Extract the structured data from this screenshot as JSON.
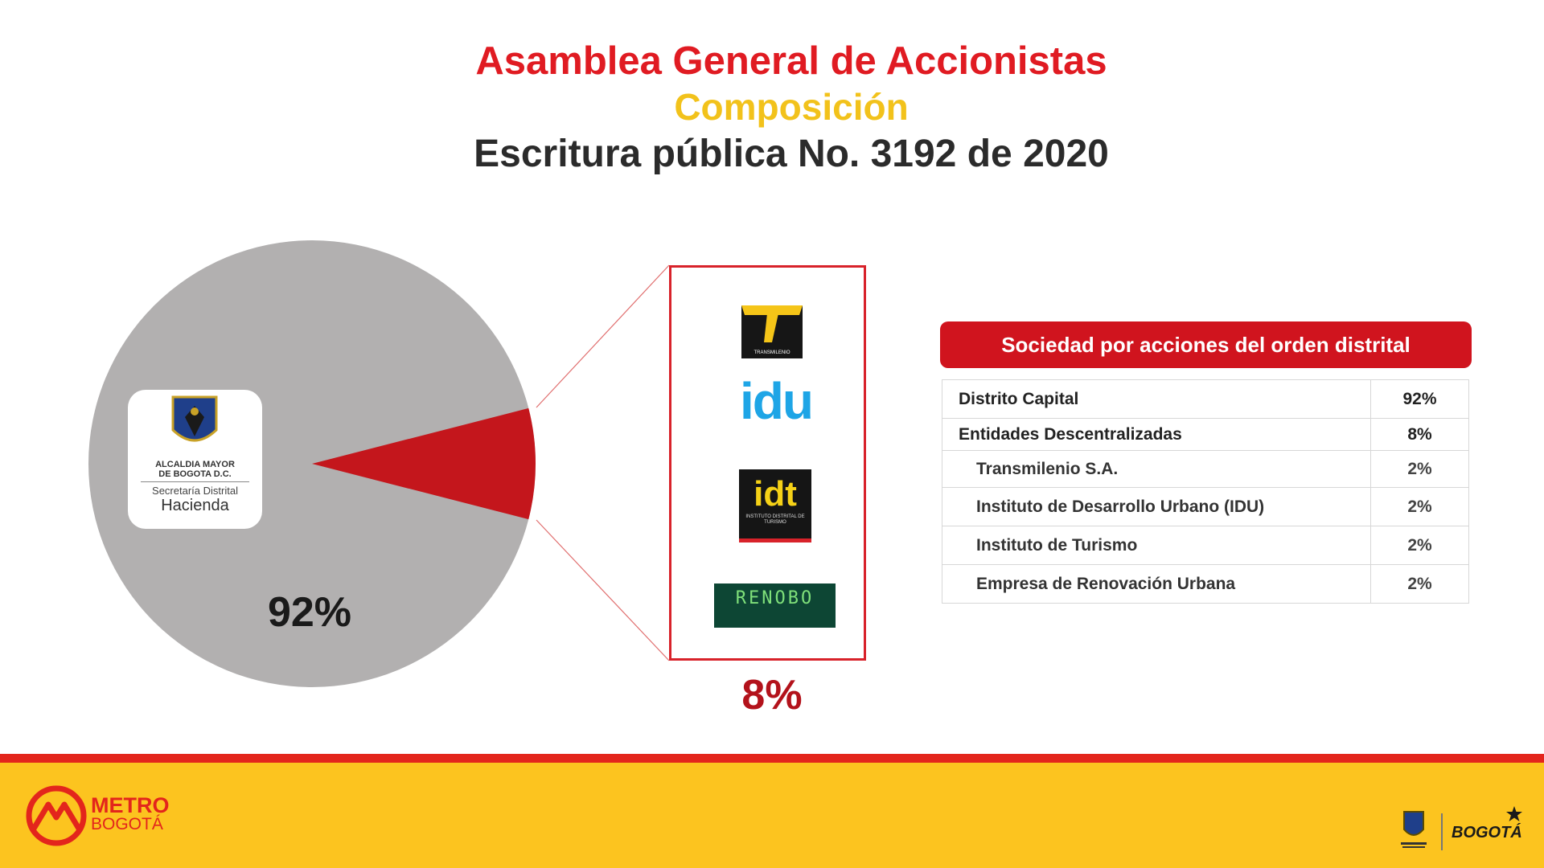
{
  "header": {
    "title": "Asamblea General de Accionistas",
    "subtitle": "Composición",
    "subheading": "Escritura pública No. 3192 de 2020"
  },
  "pie": {
    "main_logo": {
      "line1": "ALCALDIA MAYOR",
      "line2": "DE BOGOTA D.C.",
      "line3": "Secretaría Distrital",
      "line4": "Hacienda"
    },
    "main_percent": "92%",
    "secondary_percent": "8%",
    "shares": [
      92,
      8
    ],
    "colors": {
      "main": "#b2b0b0",
      "secondary": "#c4161c"
    }
  },
  "entity_logos": {
    "transmilenio": "TRANSMILENIO",
    "idu": "idu",
    "idt": "idt",
    "idt_sub": "INSTITUTO DISTRITAL DE TURISMO",
    "renobo": "RENOBO"
  },
  "table": {
    "header": "Sociedad por acciones del orden distrital",
    "rows": [
      {
        "label": "Distrito Capital",
        "value": "92%"
      },
      {
        "label": "Entidades Descentralizadas",
        "value": "8%"
      },
      {
        "label": "Transmilenio S.A.",
        "value": "2%"
      },
      {
        "label": "Instituto de Desarrollo Urbano (IDU)",
        "value": "2%"
      },
      {
        "label": "Instituto de Turismo",
        "value": "2%"
      },
      {
        "label": "Empresa de Renovación Urbana",
        "value": "2%"
      }
    ]
  },
  "footer": {
    "brand_line1": "METRO",
    "brand_line2": "BOGOTÁ",
    "city_brand": "BOGOTÁ"
  },
  "colors": {
    "accent_red": "#e01b22",
    "accent_yellow": "#f2c21b",
    "footer_yellow": "#fcc41f"
  }
}
